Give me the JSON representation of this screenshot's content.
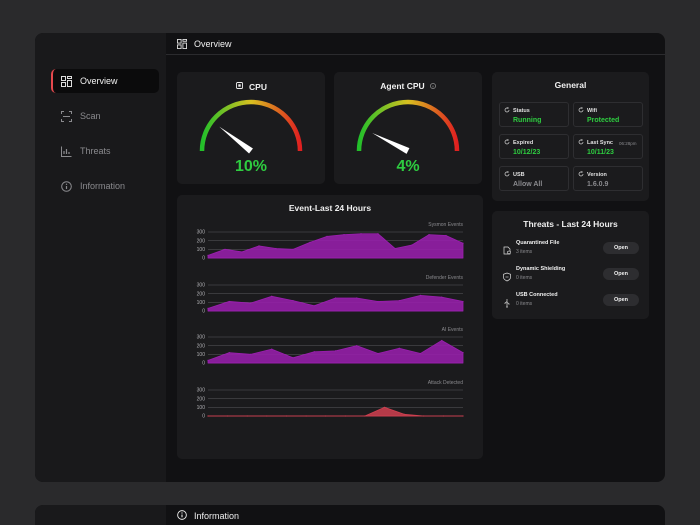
{
  "sidebar": {
    "items": [
      {
        "label": "Overview",
        "icon": "dashboard-icon",
        "active": true
      },
      {
        "label": "Scan",
        "icon": "scan-icon",
        "active": false
      },
      {
        "label": "Threats",
        "icon": "chart-icon",
        "active": false
      },
      {
        "label": "Information",
        "icon": "info-icon",
        "active": false
      }
    ]
  },
  "header": {
    "title": "Overview",
    "icon": "dashboard-icon"
  },
  "cpu": {
    "title": "CPU",
    "value": "10%",
    "percent": 10
  },
  "agent_cpu": {
    "title": "Agent CPU",
    "value": "4%",
    "percent": 4
  },
  "general": {
    "title": "General",
    "tiles": [
      {
        "label": "Status",
        "value": "Running",
        "icon": "refresh-icon",
        "color": "green"
      },
      {
        "label": "Wifi",
        "value": "Protected",
        "icon": "refresh-icon",
        "color": "green"
      },
      {
        "label": "Expired",
        "value": "10/12/23",
        "icon": "refresh-icon",
        "color": "green"
      },
      {
        "label": "Last Sync",
        "sub": "06:28pm",
        "value": "10/11/23",
        "icon": "refresh-icon",
        "color": "green"
      },
      {
        "label": "USB",
        "value": "Allow All",
        "icon": "refresh-icon",
        "color": "gray"
      },
      {
        "label": "Version",
        "value": "1.6.0.9",
        "icon": "refresh-icon",
        "color": "gray"
      }
    ]
  },
  "threats": {
    "title": "Threats - Last 24 Hours",
    "rows": [
      {
        "name": "Quarantined File",
        "count": "3 items",
        "button": "Open",
        "icon": "file-shield-icon"
      },
      {
        "name": "Dynamic Shielding",
        "count": "0 items",
        "button": "Open",
        "icon": "shield-icon"
      },
      {
        "name": "USB Connected",
        "count": "0 items",
        "button": "Open",
        "icon": "usb-icon"
      }
    ]
  },
  "events": {
    "title": "Event-Last 24 Hours"
  },
  "chart_data": [
    {
      "type": "area",
      "title": "Sysmon Events",
      "ylim": [
        0,
        300
      ],
      "yticks": [
        0,
        100,
        200,
        300
      ],
      "color": "#9b1fb0",
      "values": [
        30,
        100,
        70,
        140,
        110,
        100,
        180,
        250,
        270,
        280,
        280,
        110,
        150,
        270,
        260,
        170
      ]
    },
    {
      "type": "area",
      "title": "Defender Events",
      "ylim": [
        0,
        300
      ],
      "yticks": [
        0,
        100,
        200,
        300
      ],
      "color": "#9b1fb0",
      "values": [
        30,
        110,
        90,
        170,
        120,
        60,
        150,
        150,
        110,
        120,
        180,
        160,
        110
      ]
    },
    {
      "type": "area",
      "title": "AI Events",
      "ylim": [
        0,
        300
      ],
      "yticks": [
        0,
        100,
        200,
        300
      ],
      "color": "#9b1fb0",
      "values": [
        30,
        120,
        100,
        160,
        60,
        130,
        140,
        200,
        110,
        170,
        110,
        260,
        120
      ]
    },
    {
      "type": "area",
      "title": "Attack Detected",
      "ylim": [
        0,
        300
      ],
      "yticks": [
        0,
        100,
        200,
        300
      ],
      "color": "#d04050",
      "values": [
        0,
        0,
        0,
        0,
        0,
        0,
        0,
        0,
        0,
        100,
        20,
        0,
        0,
        0
      ]
    }
  ],
  "info_window": {
    "title": "Information"
  }
}
